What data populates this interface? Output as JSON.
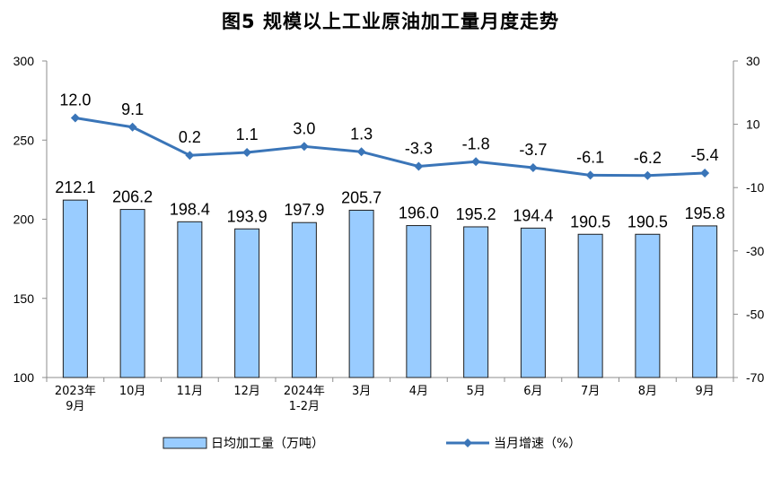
{
  "chart_data": {
    "type": "bar+line",
    "title": "图5  规模以上工业原油加工量月度走势",
    "categories": [
      [
        "2023年",
        "9月"
      ],
      [
        "10月"
      ],
      [
        "11月"
      ],
      [
        "12月"
      ],
      [
        "2024年",
        "1-2月"
      ],
      [
        "3月"
      ],
      [
        "4月"
      ],
      [
        "5月"
      ],
      [
        "6月"
      ],
      [
        "7月"
      ],
      [
        "8月"
      ],
      [
        "9月"
      ]
    ],
    "series": [
      {
        "name": "日均加工量（万吨）",
        "type": "bar",
        "axis": "left",
        "color": "#99ccff",
        "values": [
          212.1,
          206.2,
          198.4,
          193.9,
          197.9,
          205.7,
          196.0,
          195.2,
          194.4,
          190.5,
          190.5,
          195.8
        ],
        "labels": [
          "212.1",
          "206.2",
          "198.4",
          "193.9",
          "197.9",
          "205.7",
          "196.0",
          "195.2",
          "194.4",
          "190.5",
          "190.5",
          "195.8"
        ]
      },
      {
        "name": "当月增速（%）",
        "type": "line",
        "axis": "right",
        "color": "#3a75b8",
        "values": [
          12.0,
          9.1,
          0.2,
          1.1,
          3.0,
          1.3,
          -3.3,
          -1.8,
          -3.7,
          -6.1,
          -6.2,
          -5.4
        ],
        "labels": [
          "12.0",
          "9.1",
          "0.2",
          "1.1",
          "3.0",
          "1.3",
          "-3.3",
          "-1.8",
          "-3.7",
          "-6.1",
          "-6.2",
          "-5.4"
        ]
      }
    ],
    "y_left": {
      "range": [
        100,
        300
      ],
      "ticks": [
        "100",
        "150",
        "200",
        "250",
        "300"
      ]
    },
    "y_right": {
      "range": [
        -70,
        30
      ],
      "ticks": [
        "-70",
        "-50",
        "-30",
        "-10",
        "10",
        "30"
      ]
    },
    "grid": false,
    "legend_position": "bottom"
  }
}
